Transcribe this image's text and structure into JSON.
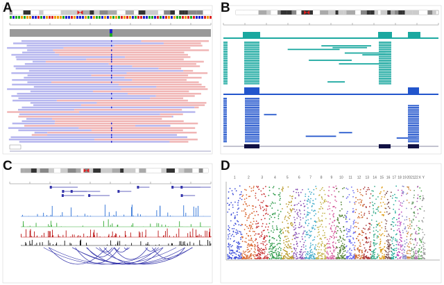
{
  "panels": [
    {
      "label": "A"
    },
    {
      "label": "B"
    },
    {
      "label": "C"
    },
    {
      "label": "D",
      "chromosomes": [
        "1",
        "2",
        "3",
        "4",
        "5",
        "6",
        "7",
        "8",
        "9",
        "10",
        "11",
        "12",
        "13",
        "14",
        "15",
        "16",
        "17",
        "18",
        "19",
        "20",
        "21",
        "22",
        "X",
        "Y"
      ]
    }
  ]
}
